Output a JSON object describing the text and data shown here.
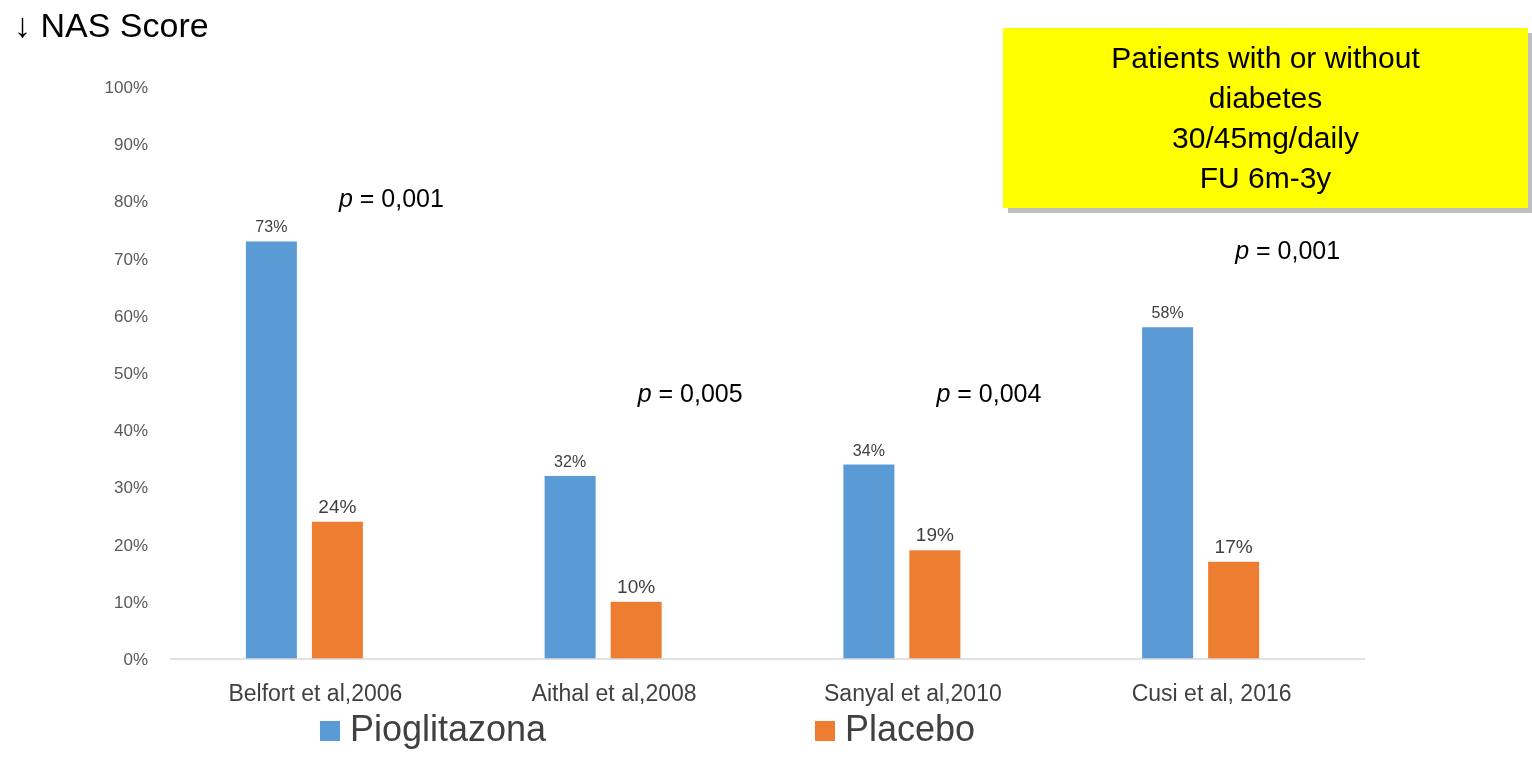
{
  "chart_data": {
    "type": "bar",
    "title": "↓ NAS Score",
    "categories": [
      "Belfort et al,2006",
      "Aithal et al,2008",
      "Sanyal et al,2010",
      "Cusi et al, 2016"
    ],
    "series": [
      {
        "name": "Pioglitazona",
        "color": "#5b9bd5",
        "values": [
          73,
          32,
          34,
          58
        ]
      },
      {
        "name": "Placebo",
        "color": "#ed7d31",
        "values": [
          24,
          10,
          19,
          17
        ]
      }
    ],
    "ylim": [
      0,
      100
    ],
    "yticks": [
      {
        "value": 0,
        "label": "0%"
      },
      {
        "value": 10,
        "label": "10%"
      },
      {
        "value": 20,
        "label": "20%"
      },
      {
        "value": 30,
        "label": "30%"
      },
      {
        "value": 40,
        "label": "40%"
      },
      {
        "value": 50,
        "label": "50%"
      },
      {
        "value": 60,
        "label": "60%"
      },
      {
        "value": 70,
        "label": "70%"
      },
      {
        "value": 80,
        "label": "80%"
      },
      {
        "value": 90,
        "label": "90%"
      },
      {
        "value": 100,
        "label": "100%"
      }
    ],
    "value_labels": [
      [
        "73%",
        "32%",
        "34%",
        "58%"
      ],
      [
        "24%",
        "10%",
        "19%",
        "17%"
      ]
    ],
    "annotations": [
      "p = 0,001",
      "p = 0,005",
      "p = 0,004",
      "p = 0,001",
      "Patients with or without\ndiabetes\n30/45mg/daily\nFU 6m-3y"
    ],
    "grid": false,
    "legend": "bottom"
  }
}
